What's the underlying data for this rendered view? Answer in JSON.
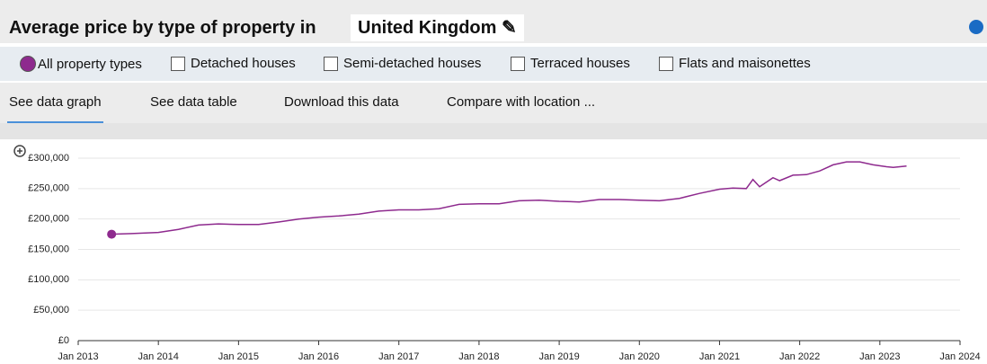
{
  "header": {
    "title": "Average price by type of property in",
    "location": "United Kingdom"
  },
  "options": [
    {
      "label": "All property types",
      "checked": true
    },
    {
      "label": "Detached houses",
      "checked": false
    },
    {
      "label": "Semi-detached houses",
      "checked": false
    },
    {
      "label": "Terraced houses",
      "checked": false
    },
    {
      "label": "Flats and maisonettes",
      "checked": false
    }
  ],
  "tabs": {
    "items": [
      "See data graph",
      "See data table",
      "Download this data",
      "Compare with location ..."
    ],
    "active": 0
  },
  "chart_data": {
    "type": "line",
    "color": "#8e2a8e",
    "x": [
      "2013-06",
      "2013-09",
      "2014-01",
      "2014-04",
      "2014-07",
      "2014-10",
      "2015-01",
      "2015-04",
      "2015-07",
      "2015-10",
      "2016-01",
      "2016-04",
      "2016-07",
      "2016-10",
      "2017-01",
      "2017-04",
      "2017-07",
      "2017-10",
      "2018-01",
      "2018-04",
      "2018-07",
      "2018-10",
      "2019-01",
      "2019-04",
      "2019-07",
      "2019-10",
      "2020-01",
      "2020-04",
      "2020-07",
      "2020-10",
      "2021-01",
      "2021-03",
      "2021-05",
      "2021-06",
      "2021-07",
      "2021-09",
      "2021-10",
      "2021-12",
      "2022-02",
      "2022-04",
      "2022-06",
      "2022-08",
      "2022-10",
      "2022-12",
      "2023-02",
      "2023-03",
      "2023-05"
    ],
    "values": [
      175000,
      176000,
      178000,
      183000,
      190000,
      192000,
      191000,
      191000,
      195000,
      200000,
      203000,
      205000,
      208000,
      213000,
      215000,
      215000,
      217000,
      224000,
      225000,
      225000,
      230000,
      231000,
      229000,
      228000,
      232000,
      232000,
      231000,
      230000,
      234000,
      242000,
      249000,
      251000,
      250000,
      265000,
      253000,
      268000,
      263000,
      272000,
      273000,
      279000,
      289000,
      294000,
      294000,
      289000,
      286000,
      285000,
      287000
    ],
    "xlim": [
      "2013-01",
      "2024-01"
    ],
    "xticks": [
      {
        "value": "2013-01",
        "label": "Jan 2013"
      },
      {
        "value": "2014-01",
        "label": "Jan 2014"
      },
      {
        "value": "2015-01",
        "label": "Jan 2015"
      },
      {
        "value": "2016-01",
        "label": "Jan 2016"
      },
      {
        "value": "2017-01",
        "label": "Jan 2017"
      },
      {
        "value": "2018-01",
        "label": "Jan 2018"
      },
      {
        "value": "2019-01",
        "label": "Jan 2019"
      },
      {
        "value": "2020-01",
        "label": "Jan 2020"
      },
      {
        "value": "2021-01",
        "label": "Jan 2021"
      },
      {
        "value": "2022-01",
        "label": "Jan 2022"
      },
      {
        "value": "2023-01",
        "label": "Jan 2023"
      },
      {
        "value": "2024-01",
        "label": "Jan 2024"
      }
    ],
    "ylim": [
      0,
      300000
    ],
    "yticks": [
      {
        "value": 0,
        "label": "£0"
      },
      {
        "value": 50000,
        "label": "£50,000"
      },
      {
        "value": 100000,
        "label": "£100,000"
      },
      {
        "value": 150000,
        "label": "£150,000"
      },
      {
        "value": 200000,
        "label": "£200,000"
      },
      {
        "value": 250000,
        "label": "£250,000"
      },
      {
        "value": 300000,
        "label": "£300,000"
      }
    ],
    "grid": true
  }
}
